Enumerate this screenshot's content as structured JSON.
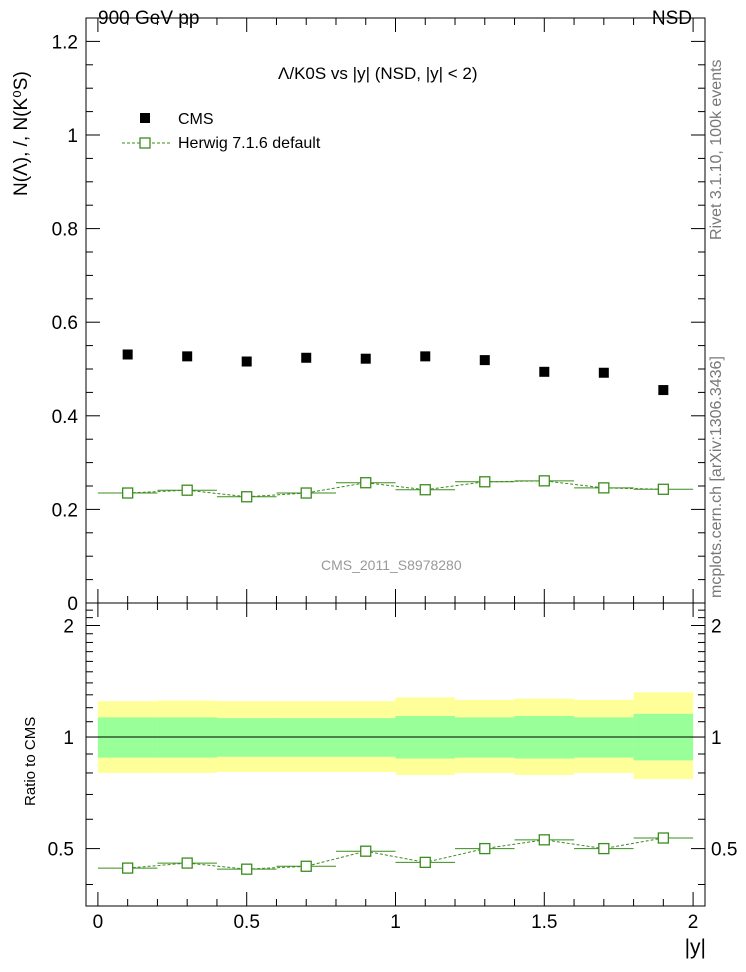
{
  "header": {
    "left": "900 GeV pp",
    "right": "NSD"
  },
  "side_text": {
    "rivet": "Rivet 3.1.10,  100k events",
    "source": "mcplots.cern.ch [arXiv:1306.3436]"
  },
  "chart_data": {
    "type": "scatter",
    "title": "Λ/K0S vs |y|  (NSD, |y| < 2)",
    "analysis_id": "CMS_2011_S8978280",
    "ylabel": "N(Λ), /, N(K⁰S)",
    "ratio_ylabel": "Ratio to CMS",
    "xlabel": "|y|",
    "xlim": [
      -0.04,
      2.04
    ],
    "ylim": [
      0,
      1.25
    ],
    "ratio_ylim": [
      0.35,
      2.3
    ],
    "x_ticks": [
      "0",
      "0.5",
      "1",
      "1.5",
      "2"
    ],
    "y_ticks": [
      "0.2",
      "0.4",
      "0.6",
      "0.8",
      "1",
      "1.2"
    ],
    "ratio_y_ticks": [
      "0.5",
      "1",
      "2"
    ],
    "x": [
      0.1,
      0.3,
      0.5,
      0.7,
      0.9,
      1.1,
      1.3,
      1.5,
      1.7,
      1.9
    ],
    "series": [
      {
        "name": "CMS",
        "color": "#000000",
        "marker": "filled-square",
        "values": [
          0.531,
          0.527,
          0.516,
          0.524,
          0.522,
          0.527,
          0.519,
          0.494,
          0.492,
          0.455
        ]
      },
      {
        "name": "Herwig 7.1.6 default",
        "color": "#3b8c1e",
        "marker": "open-square",
        "line": "dashed",
        "values": [
          0.235,
          0.241,
          0.227,
          0.235,
          0.257,
          0.242,
          0.259,
          0.261,
          0.246,
          0.243
        ]
      }
    ],
    "ratio": {
      "values": [
        0.443,
        0.457,
        0.44,
        0.448,
        0.492,
        0.459,
        0.5,
        0.528,
        0.5,
        0.534
      ],
      "inner_band": [
        [
          0.88,
          1.13
        ],
        [
          0.88,
          1.13
        ],
        [
          0.885,
          1.125
        ],
        [
          0.885,
          1.125
        ],
        [
          0.885,
          1.125
        ],
        [
          0.875,
          1.14
        ],
        [
          0.88,
          1.13
        ],
        [
          0.875,
          1.14
        ],
        [
          0.88,
          1.13
        ],
        [
          0.865,
          1.155
        ]
      ],
      "outer_band": [
        [
          0.8,
          1.25
        ],
        [
          0.8,
          1.255
        ],
        [
          0.805,
          1.25
        ],
        [
          0.805,
          1.25
        ],
        [
          0.805,
          1.25
        ],
        [
          0.79,
          1.28
        ],
        [
          0.8,
          1.26
        ],
        [
          0.79,
          1.27
        ],
        [
          0.8,
          1.26
        ],
        [
          0.77,
          1.32
        ]
      ],
      "inner_color": "#99ff99",
      "outer_color": "#ffff99"
    }
  }
}
